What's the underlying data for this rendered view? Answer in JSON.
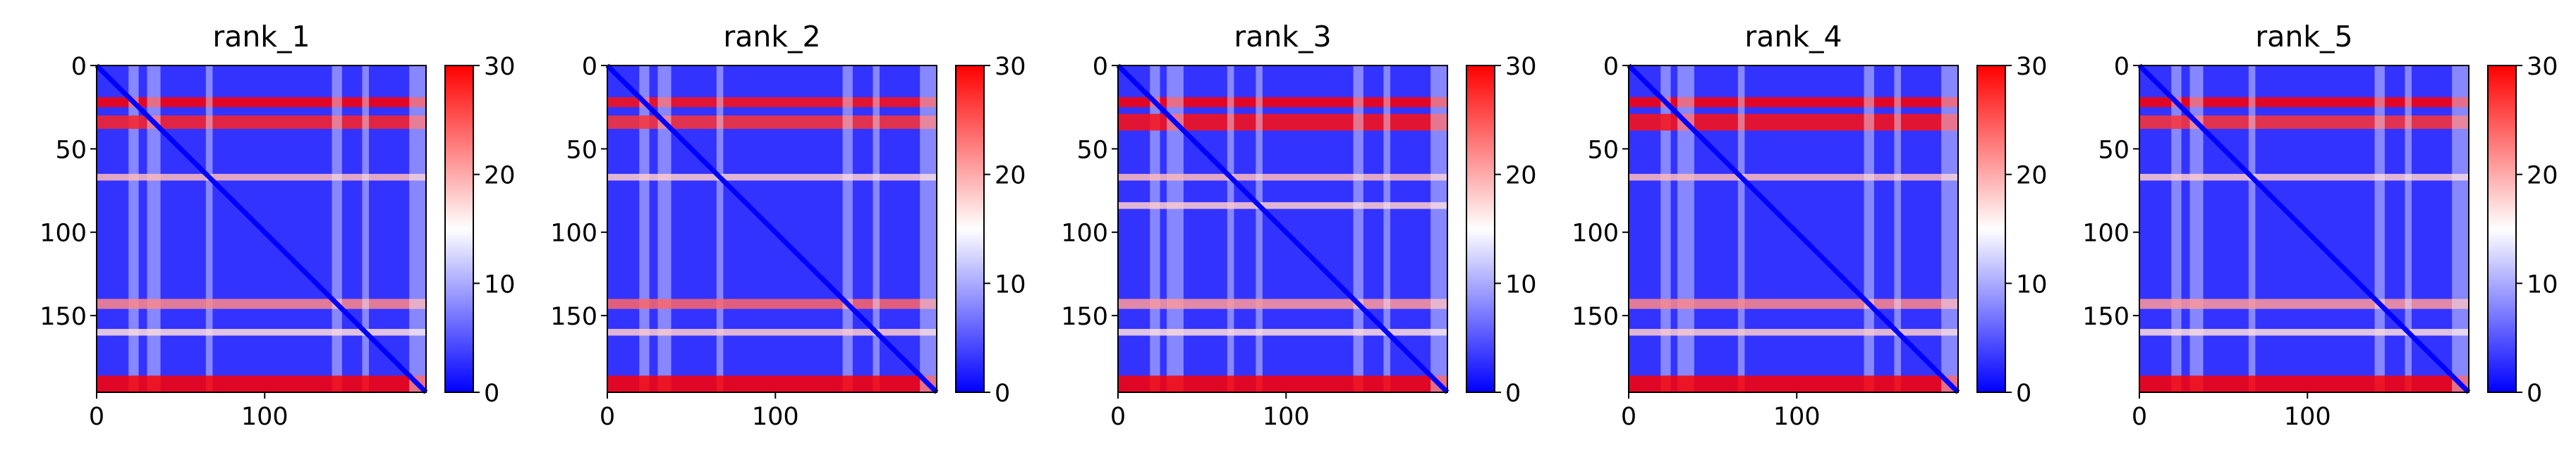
{
  "chart_data": [
    {
      "type": "heatmap",
      "title": "rank_1",
      "x_ticks": [
        0,
        100
      ],
      "y_ticks": [
        0,
        50,
        100,
        150
      ],
      "x_range": [
        0,
        196
      ],
      "y_range": [
        0,
        196
      ],
      "colorbar": {
        "ticks": [
          0,
          10,
          20,
          30
        ],
        "range": [
          0,
          30
        ],
        "colormap": "bwr"
      },
      "bands": [
        {
          "y_center": 22,
          "half_width": 3,
          "level": 30
        },
        {
          "y_center": 34,
          "half_width": 4,
          "level": 28
        },
        {
          "y_center": 67,
          "half_width": 2,
          "level": 19
        },
        {
          "y_center": 143,
          "half_width": 3,
          "level": 22
        },
        {
          "y_center": 160,
          "half_width": 2,
          "level": 17
        },
        {
          "y_center": 191,
          "half_width": 5,
          "level": 30
        }
      ]
    },
    {
      "type": "heatmap",
      "title": "rank_2",
      "x_ticks": [
        0,
        100
      ],
      "y_ticks": [
        0,
        50,
        100,
        150
      ],
      "x_range": [
        0,
        196
      ],
      "y_range": [
        0,
        196
      ],
      "colorbar": {
        "ticks": [
          0,
          10,
          20,
          30
        ],
        "range": [
          0,
          30
        ],
        "colormap": "bwr"
      },
      "bands": [
        {
          "y_center": 22,
          "half_width": 3,
          "level": 29
        },
        {
          "y_center": 34,
          "half_width": 4,
          "level": 27
        },
        {
          "y_center": 67,
          "half_width": 2,
          "level": 18
        },
        {
          "y_center": 143,
          "half_width": 3,
          "level": 24
        },
        {
          "y_center": 160,
          "half_width": 2,
          "level": 18
        },
        {
          "y_center": 191,
          "half_width": 5,
          "level": 30
        }
      ]
    },
    {
      "type": "heatmap",
      "title": "rank_3",
      "x_ticks": [
        0,
        100
      ],
      "y_ticks": [
        0,
        50,
        100,
        150
      ],
      "x_range": [
        0,
        196
      ],
      "y_range": [
        0,
        196
      ],
      "colorbar": {
        "ticks": [
          0,
          10,
          20,
          30
        ],
        "range": [
          0,
          30
        ],
        "colormap": "bwr"
      },
      "bands": [
        {
          "y_center": 22,
          "half_width": 3,
          "level": 30
        },
        {
          "y_center": 34,
          "half_width": 5,
          "level": 29
        },
        {
          "y_center": 67,
          "half_width": 2,
          "level": 19
        },
        {
          "y_center": 84,
          "half_width": 2,
          "level": 18
        },
        {
          "y_center": 143,
          "half_width": 3,
          "level": 21
        },
        {
          "y_center": 160,
          "half_width": 2,
          "level": 17
        },
        {
          "y_center": 191,
          "half_width": 5,
          "level": 30
        }
      ]
    },
    {
      "type": "heatmap",
      "title": "rank_4",
      "x_ticks": [
        0,
        100
      ],
      "y_ticks": [
        0,
        50,
        100,
        150
      ],
      "x_range": [
        0,
        196
      ],
      "y_range": [
        0,
        196
      ],
      "colorbar": {
        "ticks": [
          0,
          10,
          20,
          30
        ],
        "range": [
          0,
          30
        ],
        "colormap": "bwr"
      },
      "bands": [
        {
          "y_center": 22,
          "half_width": 3,
          "level": 30
        },
        {
          "y_center": 34,
          "half_width": 5,
          "level": 29
        },
        {
          "y_center": 67,
          "half_width": 2,
          "level": 19
        },
        {
          "y_center": 143,
          "half_width": 3,
          "level": 22
        },
        {
          "y_center": 160,
          "half_width": 2,
          "level": 18
        },
        {
          "y_center": 191,
          "half_width": 5,
          "level": 30
        }
      ]
    },
    {
      "type": "heatmap",
      "title": "rank_5",
      "x_ticks": [
        0,
        100
      ],
      "y_ticks": [
        0,
        50,
        100,
        150
      ],
      "x_range": [
        0,
        196
      ],
      "y_range": [
        0,
        196
      ],
      "colorbar": {
        "ticks": [
          0,
          10,
          20,
          30
        ],
        "range": [
          0,
          30
        ],
        "colormap": "bwr"
      },
      "bands": [
        {
          "y_center": 22,
          "half_width": 3,
          "level": 30
        },
        {
          "y_center": 34,
          "half_width": 4,
          "level": 27
        },
        {
          "y_center": 67,
          "half_width": 2,
          "level": 18
        },
        {
          "y_center": 143,
          "half_width": 3,
          "level": 21
        },
        {
          "y_center": 160,
          "half_width": 2,
          "level": 17
        },
        {
          "y_center": 191,
          "half_width": 5,
          "level": 30
        }
      ]
    }
  ]
}
